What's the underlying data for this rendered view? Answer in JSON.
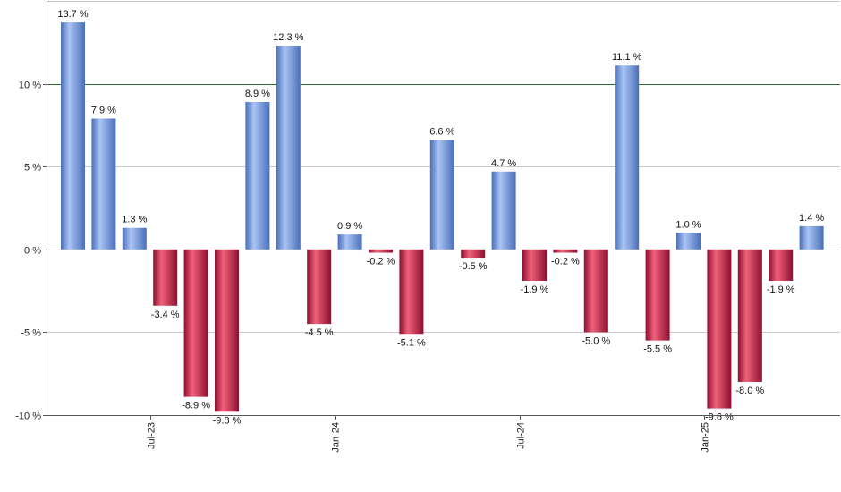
{
  "chart_data": {
    "type": "bar",
    "title": "",
    "xlabel": "",
    "ylabel": "",
    "ylim": [
      -10,
      15
    ],
    "y_ticks": [
      {
        "value": -10,
        "label": "-10 %"
      },
      {
        "value": -5,
        "label": "-5 %"
      },
      {
        "value": 0,
        "label": "0 %"
      },
      {
        "value": 5,
        "label": "5 %"
      },
      {
        "value": 10,
        "label": "10 %"
      }
    ],
    "reference_line": {
      "value": 10,
      "color": "#2e6b2e"
    },
    "x_ticks": [
      {
        "after_bar": 2,
        "label": "Jul-23"
      },
      {
        "after_bar": 8,
        "label": "Jan-24"
      },
      {
        "after_bar": 14,
        "label": "Jul-24"
      },
      {
        "after_bar": 20,
        "label": "Jan-25"
      }
    ],
    "values": [
      13.7,
      7.9,
      1.3,
      -3.4,
      -8.9,
      -9.8,
      8.9,
      12.3,
      -4.5,
      0.9,
      -0.2,
      -5.1,
      6.6,
      -0.5,
      4.7,
      -1.9,
      -0.2,
      -5.0,
      11.1,
      -5.5,
      1.0,
      -9.6,
      -8.0,
      -1.9,
      1.4
    ],
    "labels": [
      "13.7 %",
      "7.9 %",
      "1.3 %",
      "-3.4 %",
      "-8.9 %",
      "-9.8 %",
      "8.9 %",
      "12.3 %",
      "-4.5 %",
      "0.9 %",
      "-0.2 %",
      "-5.1 %",
      "6.6 %",
      "-0.5 %",
      "4.7 %",
      "-1.9 %",
      "-0.2 %",
      "-5.0 %",
      "11.1 %",
      "-5.5 %",
      "1.0 %",
      "-9.6 %",
      "-8.0 %",
      "-1.9 %",
      "1.4 %"
    ],
    "colors": {
      "positive_light": "#a9c4f5",
      "positive_dark": "#4a6eb8",
      "negative_light": "#f0607a",
      "negative_dark": "#8c1030",
      "grid": "#c8c8c8",
      "axis": "#555555"
    }
  }
}
